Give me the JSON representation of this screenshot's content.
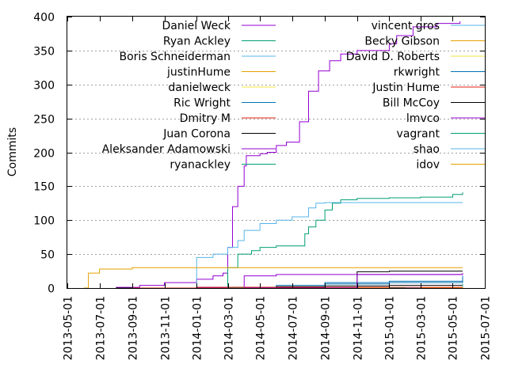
{
  "chart_data": {
    "type": "line",
    "title": "",
    "xlabel": "",
    "ylabel": "Commits",
    "ylim": [
      0,
      400
    ],
    "xlim": [
      "2013-05-01",
      "2015-07-01"
    ],
    "yticks": [
      0,
      50,
      100,
      150,
      200,
      250,
      300,
      350,
      400
    ],
    "xticks": [
      "2013-05-01",
      "2013-07-01",
      "2013-09-01",
      "2013-11-01",
      "2014-01-01",
      "2014-03-01",
      "2014-05-01",
      "2014-07-01",
      "2014-09-01",
      "2014-11-01",
      "2015-01-01",
      "2015-03-01",
      "2015-05-01",
      "2015-07-01"
    ],
    "grid": "horizontal dotted",
    "legend_placement": "inside-top, two columns",
    "series": [
      {
        "name": "Daniel Weck",
        "color": "#9400d3",
        "x": [
          "2013-08-01",
          "2013-09-15",
          "2013-11-01",
          "2014-01-01",
          "2014-02-01",
          "2014-02-20",
          "2014-03-01",
          "2014-03-10",
          "2014-03-20",
          "2014-04-01",
          "2014-04-05",
          "2014-05-01",
          "2014-05-15",
          "2014-06-01",
          "2014-06-20",
          "2014-07-15",
          "2014-08-01",
          "2014-08-20",
          "2014-09-10",
          "2014-10-01",
          "2014-11-01",
          "2015-01-01",
          "2015-01-15",
          "2015-02-15",
          "2015-04-01",
          "2015-05-15"
        ],
        "y": [
          1,
          4,
          8,
          13,
          18,
          22,
          60,
          120,
          150,
          180,
          195,
          198,
          200,
          210,
          215,
          245,
          290,
          320,
          335,
          345,
          350,
          360,
          372,
          385,
          390,
          393
        ]
      },
      {
        "name": "Ryan Ackley",
        "color": "#009e73",
        "x": [
          "2014-02-15",
          "2014-03-01",
          "2014-03-20",
          "2014-04-15",
          "2014-05-01",
          "2014-06-01",
          "2014-07-15",
          "2014-07-25",
          "2014-08-01",
          "2014-08-15",
          "2014-09-01",
          "2014-09-15",
          "2014-10-01",
          "2014-11-01",
          "2015-01-01",
          "2015-03-01",
          "2015-05-01",
          "2015-05-20"
        ],
        "y": [
          0,
          30,
          50,
          55,
          60,
          62,
          62,
          80,
          90,
          100,
          115,
          125,
          130,
          132,
          133,
          134,
          138,
          141
        ]
      },
      {
        "name": "Boris Schneiderman",
        "color": "#56b4e9",
        "x": [
          "2013-11-15",
          "2014-01-01",
          "2014-02-01",
          "2014-03-01",
          "2014-03-20",
          "2014-04-01",
          "2014-05-01",
          "2014-06-01",
          "2014-07-01",
          "2014-08-01",
          "2014-08-15",
          "2014-09-01",
          "2015-05-20"
        ],
        "y": [
          0,
          45,
          50,
          60,
          70,
          85,
          95,
          100,
          105,
          118,
          125,
          126,
          126
        ]
      },
      {
        "name": "justinHume",
        "color": "#e69f00",
        "x": [
          "2013-06-01",
          "2013-06-10",
          "2013-07-01",
          "2013-09-01",
          "2014-01-01",
          "2014-05-01",
          "2015-05-20"
        ],
        "y": [
          0,
          22,
          28,
          30,
          30,
          30,
          30
        ]
      },
      {
        "name": "danielweck",
        "color": "#f0e442",
        "x": [
          "2014-01-01",
          "2015-05-20"
        ],
        "y": [
          0,
          1
        ]
      },
      {
        "name": "Ric Wright",
        "color": "#0072b2",
        "x": [
          "2014-02-01",
          "2014-06-01",
          "2014-09-01",
          "2015-01-01",
          "2015-05-20"
        ],
        "y": [
          0,
          4,
          6,
          10,
          14
        ]
      },
      {
        "name": "Dmitry M",
        "color": "#e51e10",
        "x": [
          "2014-03-01",
          "2015-05-20"
        ],
        "y": [
          0,
          1
        ]
      },
      {
        "name": "Juan Corona",
        "color": "#000000",
        "x": [
          "2013-08-01",
          "2014-01-01",
          "2014-06-01",
          "2014-09-01",
          "2015-01-01",
          "2015-05-20"
        ],
        "y": [
          0,
          1,
          2,
          3,
          4,
          5
        ]
      },
      {
        "name": "Aleksander Adamowski",
        "color": "#9400d3",
        "x": [
          "2014-01-01",
          "2014-04-01",
          "2014-06-01",
          "2015-05-20"
        ],
        "y": [
          0,
          18,
          20,
          20
        ]
      },
      {
        "name": "ryanackley",
        "color": "#009e73",
        "x": [
          "2014-03-01",
          "2015-05-20"
        ],
        "y": [
          0,
          2
        ]
      },
      {
        "name": "vincent gros",
        "color": "#56b4e9",
        "x": [
          "2014-10-01",
          "2015-05-20"
        ],
        "y": [
          0,
          3
        ]
      },
      {
        "name": "Becky Gibson",
        "color": "#e69f00",
        "x": [
          "2014-08-01",
          "2015-05-20"
        ],
        "y": [
          0,
          3
        ]
      },
      {
        "name": "David D. Roberts",
        "color": "#f0e442",
        "x": [
          "2014-05-01",
          "2015-05-20"
        ],
        "y": [
          0,
          2
        ]
      },
      {
        "name": "rkwright",
        "color": "#0072b2",
        "x": [
          "2014-05-01",
          "2014-09-01",
          "2015-05-20"
        ],
        "y": [
          0,
          8,
          18
        ]
      },
      {
        "name": "Justin Hume",
        "color": "#e51e10",
        "x": [
          "2013-09-01",
          "2014-01-01",
          "2015-05-20"
        ],
        "y": [
          0,
          1,
          1
        ]
      },
      {
        "name": "Bill McCoy",
        "color": "#000000",
        "x": [
          "2014-10-01",
          "2014-11-01",
          "2015-01-01",
          "2015-05-20"
        ],
        "y": [
          0,
          24,
          25,
          25
        ]
      },
      {
        "name": "lmvco",
        "color": "#9400d3",
        "x": [
          "2014-04-01",
          "2014-11-01",
          "2015-05-20"
        ],
        "y": [
          0,
          20,
          22
        ]
      },
      {
        "name": "vagrant",
        "color": "#009e73",
        "x": [
          "2015-01-01",
          "2015-05-20"
        ],
        "y": [
          0,
          6
        ]
      },
      {
        "name": "shao",
        "color": "#56b4e9",
        "x": [
          "2015-02-01",
          "2015-05-20"
        ],
        "y": [
          0,
          4
        ]
      },
      {
        "name": "idov",
        "color": "#e69f00",
        "x": [
          "2015-03-01",
          "2015-05-20"
        ],
        "y": [
          0,
          2
        ]
      }
    ]
  }
}
